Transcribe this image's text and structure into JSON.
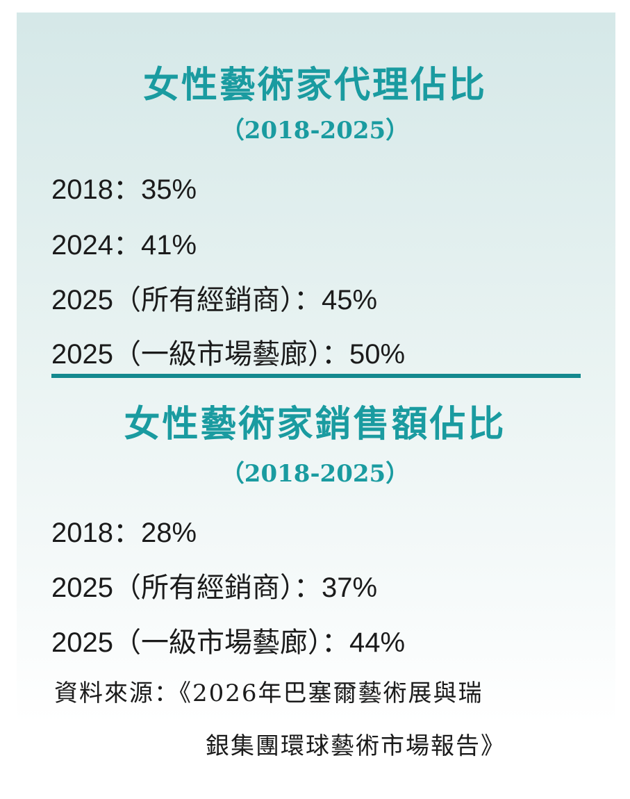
{
  "section1": {
    "title": "女性藝術家代理佔比",
    "period": "（2018-2025）",
    "items": [
      "2018：35%",
      "2024：41%",
      "2025（所有經銷商）：45%",
      "2025（一級市場藝廊）：50%"
    ]
  },
  "section2": {
    "title": "女性藝術家銷售額佔比",
    "period": "（2018-2025）",
    "items": [
      "2018：28%",
      "2025（所有經銷商）：37%",
      "2025（一級市場藝廊）：44%"
    ]
  },
  "source": {
    "line1": "資料來源：《2026年巴塞爾藝術展與瑞",
    "line2": "銀集團環球藝術市場報告》"
  },
  "colors": {
    "accent": "#1a9ba0",
    "divider": "#14898e",
    "text": "#1b1b1b"
  }
}
